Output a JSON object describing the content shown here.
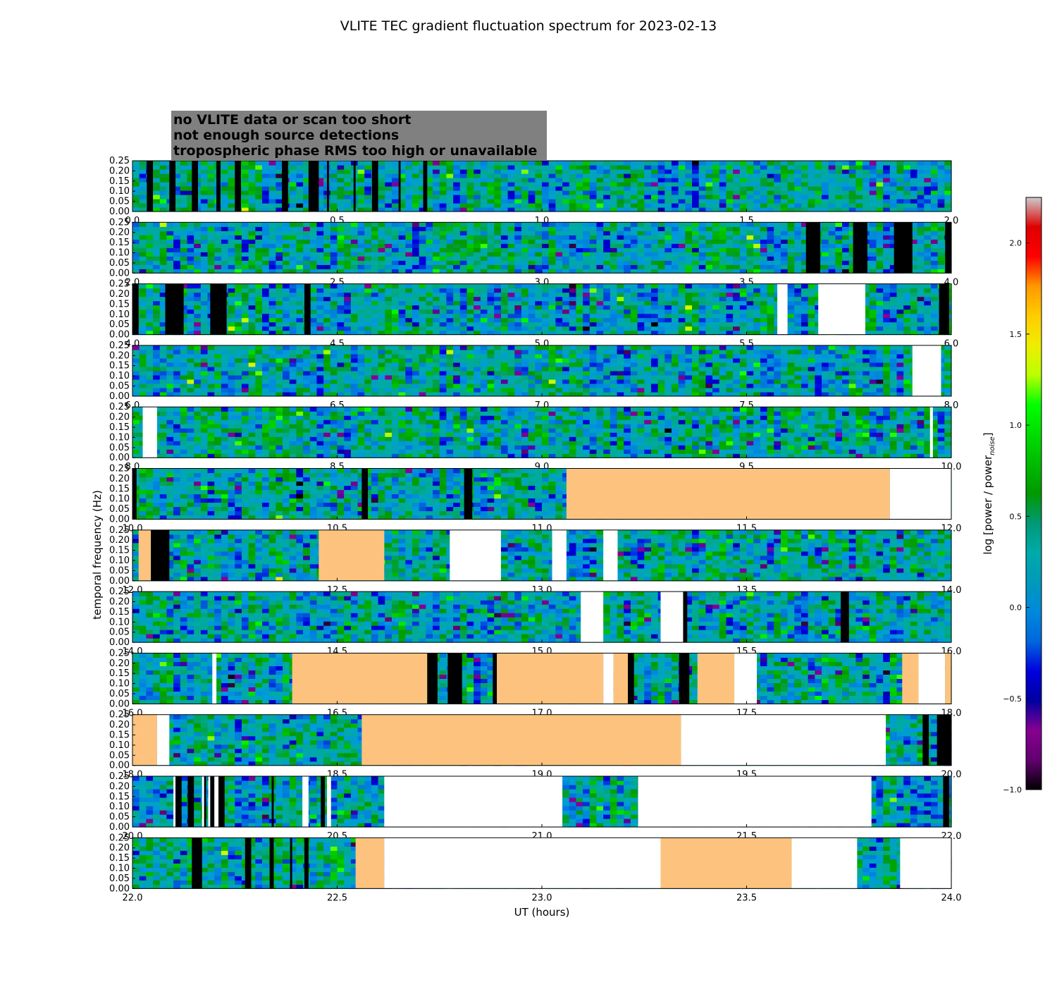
{
  "chart_data": {
    "type": "heatmap",
    "title": "VLITE TEC gradient fluctuation spectrum for 2023-02-13",
    "xlabel": "UT (hours)",
    "ylabel": "temporal frequency (Hz)",
    "ylim": [
      0,
      0.25
    ],
    "yticks": [
      "0.00",
      "0.05",
      "0.10",
      "0.15",
      "0.20",
      "0.25"
    ],
    "legend": {
      "placement": "top-left",
      "entries": [
        {
          "label": "no VLITE data or scan too short",
          "fill": "white",
          "text_color": "#ffffff"
        },
        {
          "label": "not enough source detections",
          "fill": "black",
          "text_color": "#000000"
        },
        {
          "label": "tropospheric phase RMS too high or unavailable",
          "fill": "tropo",
          "text_color": "#ffc37f"
        }
      ]
    },
    "colors": {
      "tropo": "#fdc37e",
      "legend_box": "#808080",
      "white": "#ffffff",
      "black": "#000000"
    },
    "colorbar": {
      "label": "log [power / power",
      "label_subscript": "noise",
      "label_close": "]",
      "range": [
        -1.0,
        2.25
      ],
      "ticks": [
        "−1.0",
        "−0.5",
        "0.0",
        "0.5",
        "1.0",
        "1.5",
        "2.0"
      ],
      "tick_values": [
        -1.0,
        -0.5,
        0.0,
        0.5,
        1.0,
        1.5,
        2.0
      ],
      "colormap": "nipy_spectral"
    },
    "panels": [
      {
        "start": 0,
        "end": 2,
        "ticks": [
          "0.0",
          "0.5",
          "1.0",
          "1.5",
          "2.0"
        ],
        "regions": [
          {
            "type": "black",
            "x0": 0.035,
            "x1": 0.05
          },
          {
            "type": "black",
            "x0": 0.09,
            "x1": 0.105
          },
          {
            "type": "black",
            "x0": 0.145,
            "x1": 0.16
          },
          {
            "type": "black",
            "x0": 0.205,
            "x1": 0.215
          },
          {
            "type": "black",
            "x0": 0.25,
            "x1": 0.265
          },
          {
            "type": "black",
            "x0": 0.365,
            "x1": 0.38
          },
          {
            "type": "black",
            "x0": 0.43,
            "x1": 0.455
          },
          {
            "type": "black",
            "x0": 0.475,
            "x1": 0.48
          },
          {
            "type": "black",
            "x0": 0.54,
            "x1": 0.545
          },
          {
            "type": "black",
            "x0": 0.585,
            "x1": 0.6
          },
          {
            "type": "black",
            "x0": 0.65,
            "x1": 0.655
          },
          {
            "type": "black",
            "x0": 0.71,
            "x1": 0.72
          }
        ]
      },
      {
        "start": 2,
        "end": 4,
        "ticks": [
          "2.0",
          "2.5",
          "3.0",
          "3.5",
          "4.0"
        ],
        "regions": [
          {
            "type": "black",
            "x0": 3.645,
            "x1": 3.68
          },
          {
            "type": "black",
            "x0": 3.76,
            "x1": 3.795
          },
          {
            "type": "black",
            "x0": 3.86,
            "x1": 3.905
          },
          {
            "type": "black",
            "x0": 3.985,
            "x1": 4.0
          }
        ]
      },
      {
        "start": 4,
        "end": 6,
        "ticks": [
          "4.0",
          "4.5",
          "5.0",
          "5.5",
          "6.0"
        ],
        "regions": [
          {
            "type": "black",
            "x0": 4.0,
            "x1": 4.015
          },
          {
            "type": "black",
            "x0": 4.08,
            "x1": 4.125
          },
          {
            "type": "black",
            "x0": 4.19,
            "x1": 4.23
          },
          {
            "type": "black",
            "x0": 4.42,
            "x1": 4.435
          },
          {
            "type": "white",
            "x0": 5.575,
            "x1": 5.6
          },
          {
            "type": "white",
            "x0": 5.675,
            "x1": 5.79
          },
          {
            "type": "black",
            "x0": 5.97,
            "x1": 5.995
          }
        ]
      },
      {
        "start": 6,
        "end": 8,
        "ticks": [
          "6.0",
          "6.5",
          "7.0",
          "7.5",
          "8.0"
        ],
        "regions": [
          {
            "type": "white",
            "x0": 7.905,
            "x1": 7.975
          }
        ]
      },
      {
        "start": 8,
        "end": 10,
        "ticks": [
          "8.0",
          "8.5",
          "9.0",
          "9.5",
          "10.0"
        ],
        "regions": [
          {
            "type": "white",
            "x0": 8.025,
            "x1": 8.06
          },
          {
            "type": "white",
            "x0": 9.948,
            "x1": 9.955
          }
        ]
      },
      {
        "start": 10,
        "end": 12,
        "ticks": [
          "10.0",
          "10.5",
          "11.0",
          "11.5",
          "12.0"
        ],
        "regions": [
          {
            "type": "black",
            "x0": 10.0,
            "x1": 10.01
          },
          {
            "type": "black",
            "x0": 10.56,
            "x1": 10.575
          },
          {
            "type": "black",
            "x0": 10.81,
            "x1": 10.83
          },
          {
            "type": "tropo",
            "x0": 11.06,
            "x1": 11.85
          },
          {
            "type": "white",
            "x0": 11.85,
            "x1": 12.0
          }
        ]
      },
      {
        "start": 12,
        "end": 14,
        "ticks": [
          "12.0",
          "12.5",
          "13.0",
          "13.5",
          "14.0"
        ],
        "regions": [
          {
            "type": "tropo",
            "x0": 12.015,
            "x1": 12.045
          },
          {
            "type": "black",
            "x0": 12.045,
            "x1": 12.09
          },
          {
            "type": "tropo",
            "x0": 12.455,
            "x1": 12.615
          },
          {
            "type": "white",
            "x0": 12.775,
            "x1": 12.9
          },
          {
            "type": "white",
            "x0": 13.025,
            "x1": 13.06
          },
          {
            "type": "white",
            "x0": 13.15,
            "x1": 13.185
          }
        ]
      },
      {
        "start": 14,
        "end": 16,
        "ticks": [
          "14.0",
          "14.5",
          "15.0",
          "15.5",
          "16.0"
        ],
        "regions": [
          {
            "type": "white",
            "x0": 15.095,
            "x1": 15.15
          },
          {
            "type": "white",
            "x0": 15.29,
            "x1": 15.345
          },
          {
            "type": "black",
            "x0": 15.345,
            "x1": 15.355
          },
          {
            "type": "black",
            "x0": 15.73,
            "x1": 15.75
          }
        ]
      },
      {
        "start": 16,
        "end": 18,
        "ticks": [
          "16.0",
          "16.5",
          "17.0",
          "17.5",
          "18.0"
        ],
        "regions": [
          {
            "type": "white",
            "x0": 16.195,
            "x1": 16.205
          },
          {
            "type": "tropo",
            "x0": 16.39,
            "x1": 16.72
          },
          {
            "type": "black",
            "x0": 16.72,
            "x1": 16.745
          },
          {
            "type": "black",
            "x0": 16.77,
            "x1": 16.805
          },
          {
            "type": "black",
            "x0": 16.88,
            "x1": 16.89
          },
          {
            "type": "tropo",
            "x0": 16.89,
            "x1": 17.15
          },
          {
            "type": "white",
            "x0": 17.15,
            "x1": 17.175
          },
          {
            "type": "tropo",
            "x0": 17.175,
            "x1": 17.21
          },
          {
            "type": "black",
            "x0": 17.21,
            "x1": 17.225
          },
          {
            "type": "black",
            "x0": 17.335,
            "x1": 17.36
          },
          {
            "type": "tropo",
            "x0": 17.38,
            "x1": 17.47
          },
          {
            "type": "white",
            "x0": 17.47,
            "x1": 17.525
          },
          {
            "type": "tropo",
            "x0": 17.88,
            "x1": 17.92
          },
          {
            "type": "white",
            "x0": 17.92,
            "x1": 17.985
          },
          {
            "type": "tropo",
            "x0": 17.985,
            "x1": 18.0
          }
        ]
      },
      {
        "start": 18,
        "end": 20,
        "ticks": [
          "18.0",
          "18.5",
          "19.0",
          "19.5",
          "20.0"
        ],
        "regions": [
          {
            "type": "tropo",
            "x0": 18.0,
            "x1": 18.06
          },
          {
            "type": "white",
            "x0": 18.06,
            "x1": 18.09
          },
          {
            "type": "tropo",
            "x0": 18.56,
            "x1": 19.34
          },
          {
            "type": "white",
            "x0": 19.34,
            "x1": 19.84
          },
          {
            "type": "black",
            "x0": 19.93,
            "x1": 19.945
          },
          {
            "type": "black",
            "x0": 19.965,
            "x1": 20.0
          }
        ]
      },
      {
        "start": 20,
        "end": 22,
        "ticks": [
          "20.0",
          "20.5",
          "21.0",
          "21.5",
          "22.0"
        ],
        "regions": [
          {
            "type": "white",
            "x0": 20.1,
            "x1": 20.105
          },
          {
            "type": "black",
            "x0": 20.105,
            "x1": 20.12
          },
          {
            "type": "black",
            "x0": 20.135,
            "x1": 20.15
          },
          {
            "type": "white",
            "x0": 20.17,
            "x1": 20.175
          },
          {
            "type": "black",
            "x0": 20.175,
            "x1": 20.18
          },
          {
            "type": "white",
            "x0": 20.185,
            "x1": 20.19
          },
          {
            "type": "black",
            "x0": 20.19,
            "x1": 20.2
          },
          {
            "type": "white",
            "x0": 20.2,
            "x1": 20.21
          },
          {
            "type": "black",
            "x0": 20.21,
            "x1": 20.225
          },
          {
            "type": "black",
            "x0": 20.34,
            "x1": 20.345
          },
          {
            "type": "white",
            "x0": 20.415,
            "x1": 20.43
          },
          {
            "type": "black",
            "x0": 20.46,
            "x1": 20.47
          },
          {
            "type": "white",
            "x0": 20.475,
            "x1": 20.485
          },
          {
            "type": "white",
            "x0": 20.615,
            "x1": 21.05
          },
          {
            "type": "white",
            "x0": 21.235,
            "x1": 21.805
          },
          {
            "type": "black",
            "x0": 21.98,
            "x1": 21.995
          }
        ]
      },
      {
        "start": 22,
        "end": 24,
        "ticks": [
          "22.0",
          "22.5",
          "23.0",
          "23.5",
          "24.0"
        ],
        "regions": [
          {
            "type": "black",
            "x0": 22.145,
            "x1": 22.17
          },
          {
            "type": "black",
            "x0": 22.275,
            "x1": 22.29
          },
          {
            "type": "black",
            "x0": 22.335,
            "x1": 22.345
          },
          {
            "type": "black",
            "x0": 22.385,
            "x1": 22.39
          },
          {
            "type": "black",
            "x0": 22.42,
            "x1": 22.43
          },
          {
            "type": "tropo",
            "x0": 22.545,
            "x1": 22.615
          },
          {
            "type": "white",
            "x0": 22.615,
            "x1": 23.29
          },
          {
            "type": "tropo",
            "x0": 23.29,
            "x1": 23.61
          },
          {
            "type": "white",
            "x0": 23.61,
            "x1": 23.77
          },
          {
            "type": "white",
            "x0": 23.875,
            "x1": 24.0
          }
        ]
      }
    ]
  }
}
